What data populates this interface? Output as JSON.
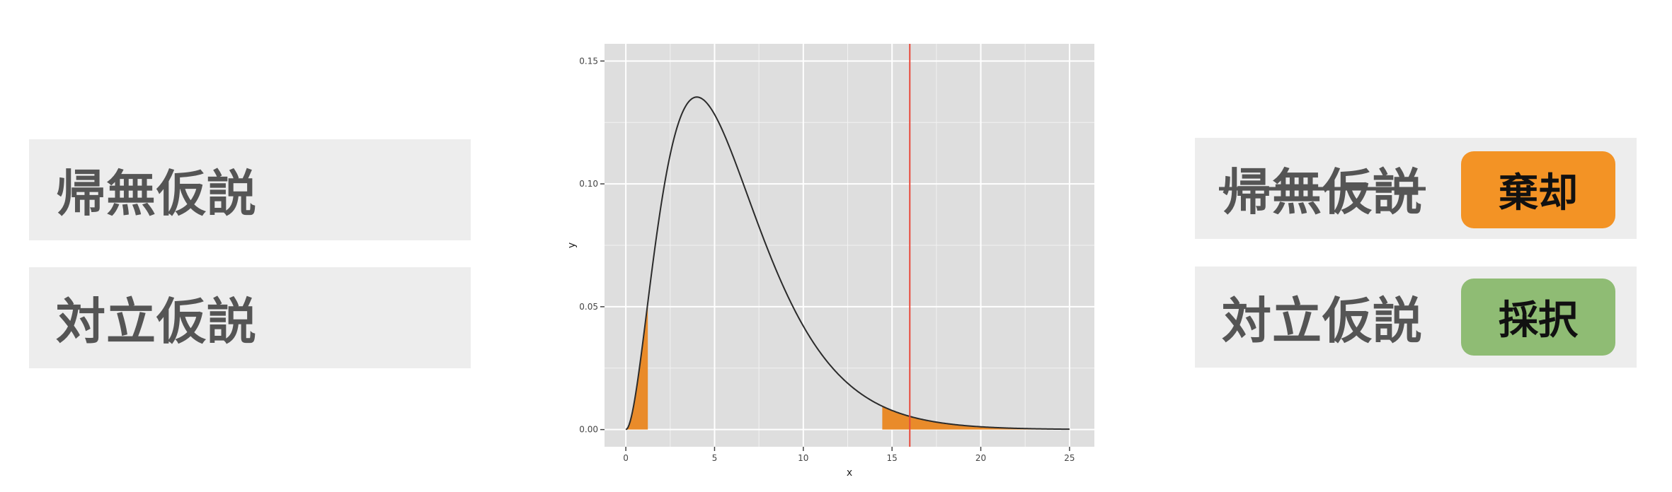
{
  "left": {
    "null_hypothesis": "帰無仮説",
    "alternative_hypothesis": "対立仮説"
  },
  "right": {
    "null_hypothesis": "帰無仮説",
    "alternative_hypothesis": "対立仮説",
    "reject_badge": "棄却",
    "accept_badge": "採択"
  },
  "colors": {
    "panel_bg": "#ededed",
    "reject": "#f39325",
    "accept": "#8fbc74",
    "shade": "#e98b2a",
    "observed_line": "#e8493b",
    "plot_bg": "#dedede"
  },
  "chart_data": {
    "type": "area",
    "distribution_df": 6,
    "xlabel": "x",
    "ylabel": "y",
    "xlim": [
      -1.2,
      26.4
    ],
    "ylim": [
      -0.007,
      0.157
    ],
    "x_ticks": [
      0,
      5,
      10,
      15,
      20,
      25
    ],
    "x_tick_labels": [
      "0",
      "5",
      "10",
      "15",
      "20",
      "25"
    ],
    "y_ticks": [
      0.0,
      0.05,
      0.1,
      0.15
    ],
    "y_tick_labels": [
      "0.00",
      "0.05",
      "0.10",
      "0.15"
    ],
    "x_range": [
      0,
      25
    ],
    "shaded_regions": [
      {
        "from": 0,
        "to": 1.24
      },
      {
        "from": 14.45,
        "to": 25
      }
    ],
    "observed_value": 16.0,
    "grid": true
  }
}
